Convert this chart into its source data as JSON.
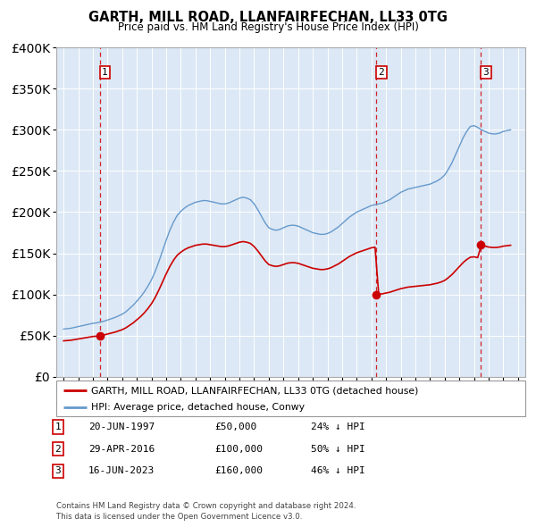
{
  "title": "GARTH, MILL ROAD, LLANFAIRFECHAN, LL33 0TG",
  "subtitle": "Price paid vs. HM Land Registry's House Price Index (HPI)",
  "sale_dates": [
    1997.47,
    2016.33,
    2023.46
  ],
  "sale_prices": [
    50000,
    100000,
    160000
  ],
  "sale_labels": [
    "1",
    "2",
    "3"
  ],
  "sale_info": [
    {
      "num": "1",
      "date": "20-JUN-1997",
      "price": "£50,000",
      "hpi": "24% ↓ HPI"
    },
    {
      "num": "2",
      "date": "29-APR-2016",
      "price": "£100,000",
      "hpi": "50% ↓ HPI"
    },
    {
      "num": "3",
      "date": "16-JUN-2023",
      "price": "£160,000",
      "hpi": "46% ↓ HPI"
    }
  ],
  "legend_line1": "GARTH, MILL ROAD, LLANFAIRFECHAN, LL33 0TG (detached house)",
  "legend_line2": "HPI: Average price, detached house, Conwy",
  "footer": "Contains HM Land Registry data © Crown copyright and database right 2024.\nThis data is licensed under the Open Government Licence v3.0.",
  "red_color": "#cc0000",
  "blue_color": "#6699cc",
  "background_color": "#dce8f5",
  "ylim": [
    0,
    400000
  ],
  "xlim": [
    1994.5,
    2026.5
  ],
  "hpi_years": [
    1995.0,
    1995.25,
    1995.5,
    1995.75,
    1996.0,
    1996.25,
    1996.5,
    1996.75,
    1997.0,
    1997.25,
    1997.5,
    1997.75,
    1998.0,
    1998.25,
    1998.5,
    1998.75,
    1999.0,
    1999.25,
    1999.5,
    1999.75,
    2000.0,
    2000.25,
    2000.5,
    2000.75,
    2001.0,
    2001.25,
    2001.5,
    2001.75,
    2002.0,
    2002.25,
    2002.5,
    2002.75,
    2003.0,
    2003.25,
    2003.5,
    2003.75,
    2004.0,
    2004.25,
    2004.5,
    2004.75,
    2005.0,
    2005.25,
    2005.5,
    2005.75,
    2006.0,
    2006.25,
    2006.5,
    2006.75,
    2007.0,
    2007.25,
    2007.5,
    2007.75,
    2008.0,
    2008.25,
    2008.5,
    2008.75,
    2009.0,
    2009.25,
    2009.5,
    2009.75,
    2010.0,
    2010.25,
    2010.5,
    2010.75,
    2011.0,
    2011.25,
    2011.5,
    2011.75,
    2012.0,
    2012.25,
    2012.5,
    2012.75,
    2013.0,
    2013.25,
    2013.5,
    2013.75,
    2014.0,
    2014.25,
    2014.5,
    2014.75,
    2015.0,
    2015.25,
    2015.5,
    2015.75,
    2016.0,
    2016.25,
    2016.5,
    2016.75,
    2017.0,
    2017.25,
    2017.5,
    2017.75,
    2018.0,
    2018.25,
    2018.5,
    2018.75,
    2019.0,
    2019.25,
    2019.5,
    2019.75,
    2020.0,
    2020.25,
    2020.5,
    2020.75,
    2021.0,
    2021.25,
    2021.5,
    2021.75,
    2022.0,
    2022.25,
    2022.5,
    2022.75,
    2023.0,
    2023.25,
    2023.5,
    2023.75,
    2024.0,
    2024.25,
    2024.5,
    2024.75,
    2025.0,
    2025.5
  ],
  "hpi_prices": [
    58000,
    58500,
    59000,
    60000,
    61000,
    62000,
    63000,
    64000,
    65000,
    65500,
    66500,
    67500,
    69000,
    70500,
    72000,
    74000,
    76000,
    79000,
    83000,
    87000,
    92000,
    97000,
    103000,
    110000,
    118000,
    128000,
    140000,
    153000,
    166000,
    178000,
    188000,
    196000,
    201000,
    205000,
    208000,
    210000,
    212000,
    213000,
    214000,
    214000,
    213000,
    212000,
    211000,
    210000,
    210000,
    211000,
    213000,
    215000,
    217000,
    218000,
    217000,
    215000,
    210000,
    203000,
    195000,
    187000,
    181000,
    179000,
    178000,
    179000,
    181000,
    183000,
    184000,
    184000,
    183000,
    181000,
    179000,
    177000,
    175000,
    174000,
    173000,
    173000,
    174000,
    176000,
    179000,
    182000,
    186000,
    190000,
    194000,
    197000,
    200000,
    202000,
    204000,
    206000,
    208000,
    209000,
    210000,
    211000,
    213000,
    215000,
    218000,
    221000,
    224000,
    226000,
    228000,
    229000,
    230000,
    231000,
    232000,
    233000,
    234000,
    236000,
    238000,
    241000,
    245000,
    252000,
    260000,
    270000,
    280000,
    290000,
    298000,
    304000,
    305000,
    303000,
    300000,
    298000,
    296000,
    295000,
    295000,
    296000,
    298000,
    300000
  ]
}
